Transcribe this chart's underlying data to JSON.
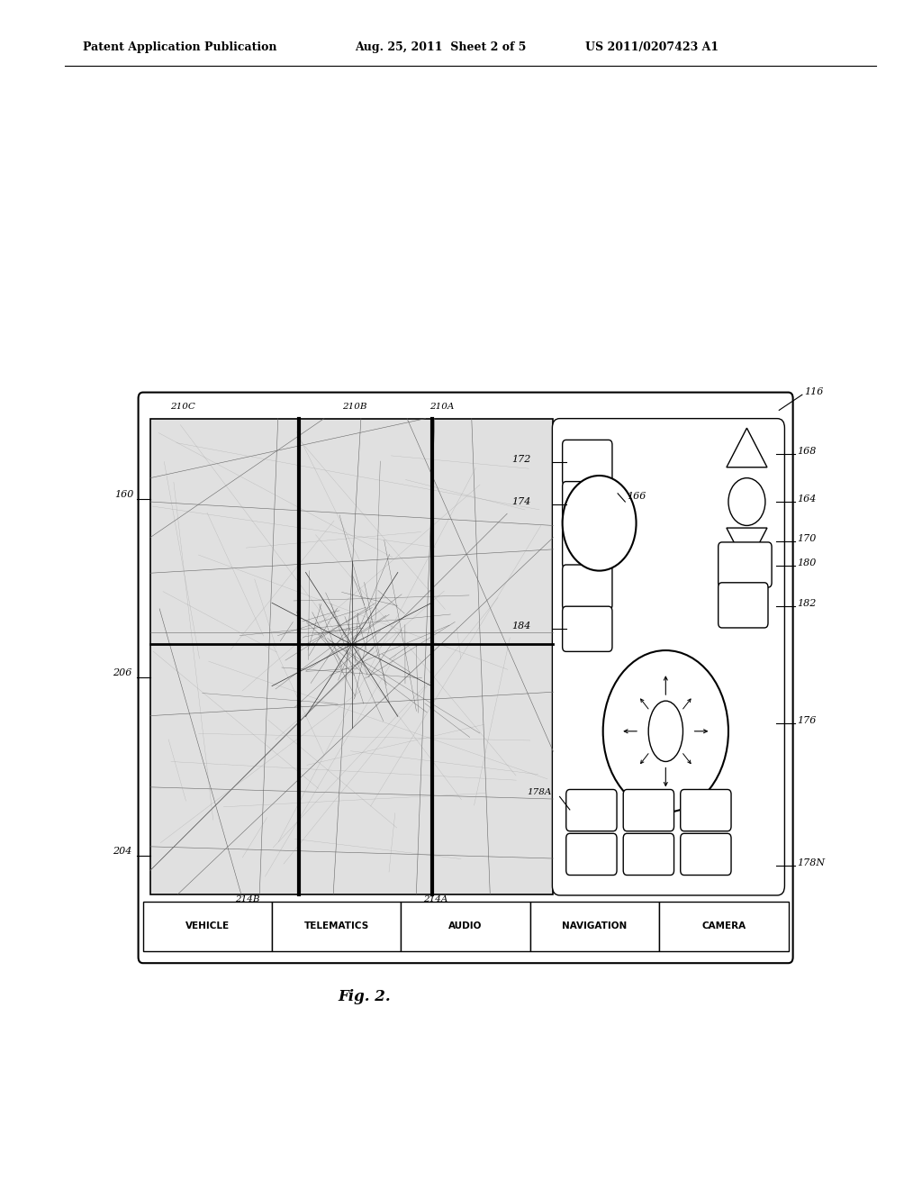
{
  "bg_color": "#ffffff",
  "header_text_left": "Patent Application Publication",
  "header_text_mid": "Aug. 25, 2011  Sheet 2 of 5",
  "header_text_right": "US 2011/0207423 A1",
  "fig_label": "Fig. 2.",
  "tabs": [
    "VEHICLE",
    "TELEMATICS",
    "AUDIO",
    "NAVIGATION",
    "CAMERA"
  ],
  "label_116": "116",
  "label_160": "160",
  "label_204": "204",
  "label_206": "206",
  "label_210A": "210A",
  "label_210B": "210B",
  "label_210C": "210C",
  "label_214A": "214A",
  "label_214B": "214B",
  "label_164": "164",
  "label_166": "166",
  "label_168": "168",
  "label_170": "170",
  "label_172": "172",
  "label_174": "174",
  "label_176": "176",
  "label_178A": "178A",
  "label_178N": "178N",
  "label_180": "180",
  "label_182": "182",
  "label_184": "184"
}
